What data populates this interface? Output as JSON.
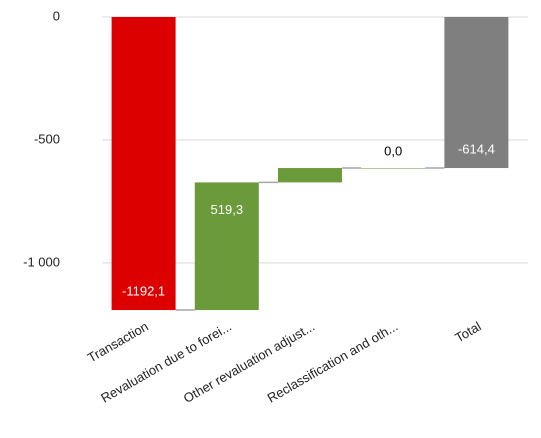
{
  "chart_data": {
    "type": "waterfall",
    "categories": [
      "Transaction",
      "Revaluation due to forei...",
      "Other revaluation adjust...",
      "Reclassification and oth...",
      "Total"
    ],
    "values": [
      -1192.1,
      519.3,
      58.4,
      0.0,
      -614.4
    ],
    "value_labels": [
      "-1192,1",
      "519,3",
      null,
      "0,0",
      "-614,4"
    ],
    "is_total": [
      false,
      false,
      false,
      false,
      true
    ],
    "colors": {
      "increase": "#6a9a3a",
      "decrease": "#dd0000",
      "total": "#7f7f7f"
    },
    "ylim": [
      -1200,
      0
    ],
    "yticks": [
      0,
      -500,
      {
        "value": -1000,
        "label": "-1 000"
      }
    ],
    "grid": true
  }
}
